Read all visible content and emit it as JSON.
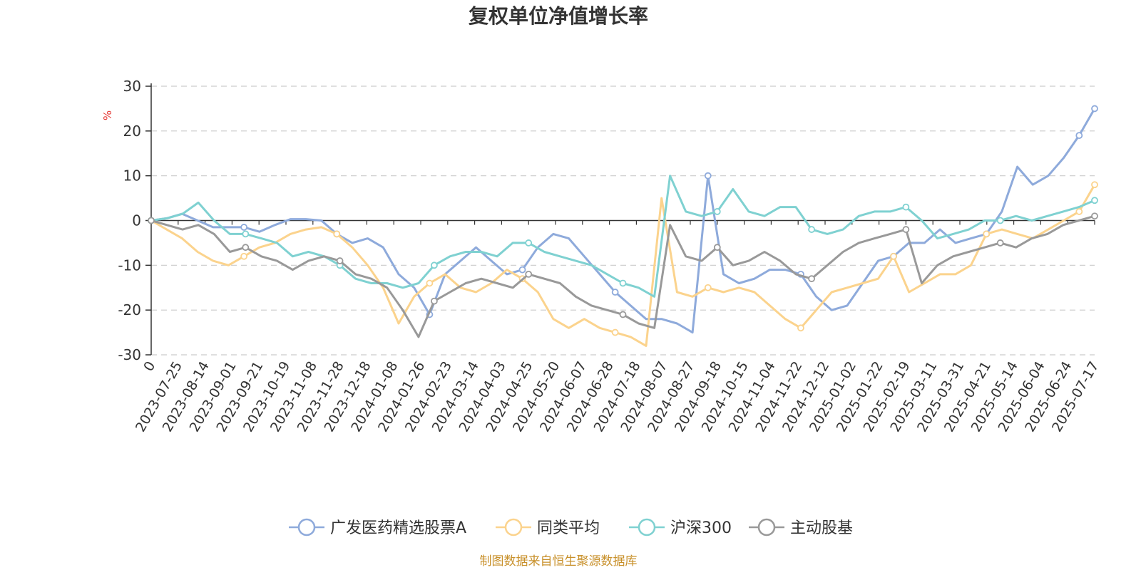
{
  "chart_data": {
    "type": "line",
    "title": "复权单位净值增长率",
    "ylabel": "%",
    "ylim": [
      -30,
      30
    ],
    "yticks": [
      30,
      20,
      10,
      0,
      -10,
      -20,
      -30
    ],
    "x_first_label": "0",
    "x_labels": [
      "2023-07-25",
      "2023-08-14",
      "2023-09-01",
      "2023-09-21",
      "2023-10-19",
      "2023-11-08",
      "2023-11-28",
      "2023-12-18",
      "2024-01-08",
      "2024-01-26",
      "2024-02-23",
      "2024-03-14",
      "2024-04-03",
      "2024-04-25",
      "2024-05-20",
      "2024-06-07",
      "2024-06-28",
      "2024-07-18",
      "2024-08-07",
      "2024-08-27",
      "2024-09-18",
      "2024-10-15",
      "2024-11-04",
      "2024-11-22",
      "2024-12-12",
      "2025-01-02",
      "2025-01-22",
      "2025-02-19",
      "2025-03-11",
      "2025-03-31",
      "2025-04-21",
      "2025-05-14",
      "2025-06-04",
      "2025-06-24",
      "2025-07-17"
    ],
    "grid": true,
    "legend_position": "bottom",
    "series": [
      {
        "name": "广发医药精选股票A",
        "color": "#8eaadb",
        "values": [
          0,
          0.5,
          1.5,
          0,
          -1.5,
          -1.5,
          -1.5,
          -2.5,
          -1,
          0.3,
          0.3,
          0,
          -3,
          -5,
          -4,
          -6,
          -12,
          -15,
          -21,
          -12,
          -9,
          -6,
          -9,
          -12,
          -11,
          -6,
          -3,
          -4,
          -8,
          -12,
          -16,
          -19,
          -22,
          -22,
          -23,
          -25,
          10,
          -12,
          -14,
          -13,
          -11,
          -11,
          -12,
          -17,
          -20,
          -19,
          -14,
          -9,
          -8,
          -5,
          -5,
          -2,
          -5,
          -4,
          -3,
          2,
          12,
          8,
          10,
          14,
          19,
          25
        ]
      },
      {
        "name": "同类平均",
        "color": "#fbd38d",
        "values": [
          0,
          -2,
          -4,
          -7,
          -9,
          -10,
          -8,
          -6,
          -5,
          -3,
          -2,
          -1.5,
          -3,
          -6,
          -10,
          -15,
          -23,
          -17,
          -14,
          -12,
          -15,
          -16,
          -14,
          -11,
          -13,
          -16,
          -22,
          -24,
          -22,
          -24,
          -25,
          -26,
          -28,
          5,
          -16,
          -17,
          -15,
          -16,
          -15,
          -16,
          -19,
          -22,
          -24,
          -20,
          -16,
          -15,
          -14,
          -13,
          -8,
          -16,
          -14,
          -12,
          -12,
          -10,
          -3,
          -2,
          -3,
          -4,
          -2,
          0,
          2,
          8
        ]
      },
      {
        "name": "沪深300",
        "color": "#7fd1d1",
        "values": [
          0,
          0.5,
          1.5,
          4,
          0,
          -3,
          -3,
          -4,
          -5,
          -8,
          -7,
          -8,
          -10,
          -13,
          -14,
          -14,
          -15,
          -14,
          -10,
          -8,
          -7,
          -7,
          -8,
          -5,
          -5,
          -7,
          -8,
          -9,
          -10,
          -12,
          -14,
          -15,
          -17,
          10,
          2,
          1,
          2,
          7,
          2,
          1,
          3,
          3,
          -2,
          -3,
          -2,
          1,
          2,
          2,
          3,
          0,
          -4,
          -3,
          -2,
          0,
          0,
          1,
          0,
          1,
          2,
          3,
          4.5
        ]
      },
      {
        "name": "主动股基",
        "color": "#999999",
        "values": [
          0,
          -1,
          -2,
          -1,
          -3,
          -7,
          -6,
          -8,
          -9,
          -11,
          -9,
          -8,
          -9,
          -12,
          -13,
          -15,
          -20,
          -26,
          -18,
          -16,
          -14,
          -13,
          -14,
          -15,
          -12,
          -13,
          -14,
          -17,
          -19,
          -20,
          -21,
          -23,
          -24,
          -1,
          -8,
          -9,
          -6,
          -10,
          -9,
          -7,
          -9,
          -12,
          -13,
          -10,
          -7,
          -5,
          -4,
          -3,
          -2,
          -14,
          -10,
          -8,
          -7,
          -6,
          -5,
          -6,
          -4,
          -3,
          -1,
          0,
          1
        ]
      }
    ],
    "source_text": "制图数据来自恒生聚源数据库"
  }
}
